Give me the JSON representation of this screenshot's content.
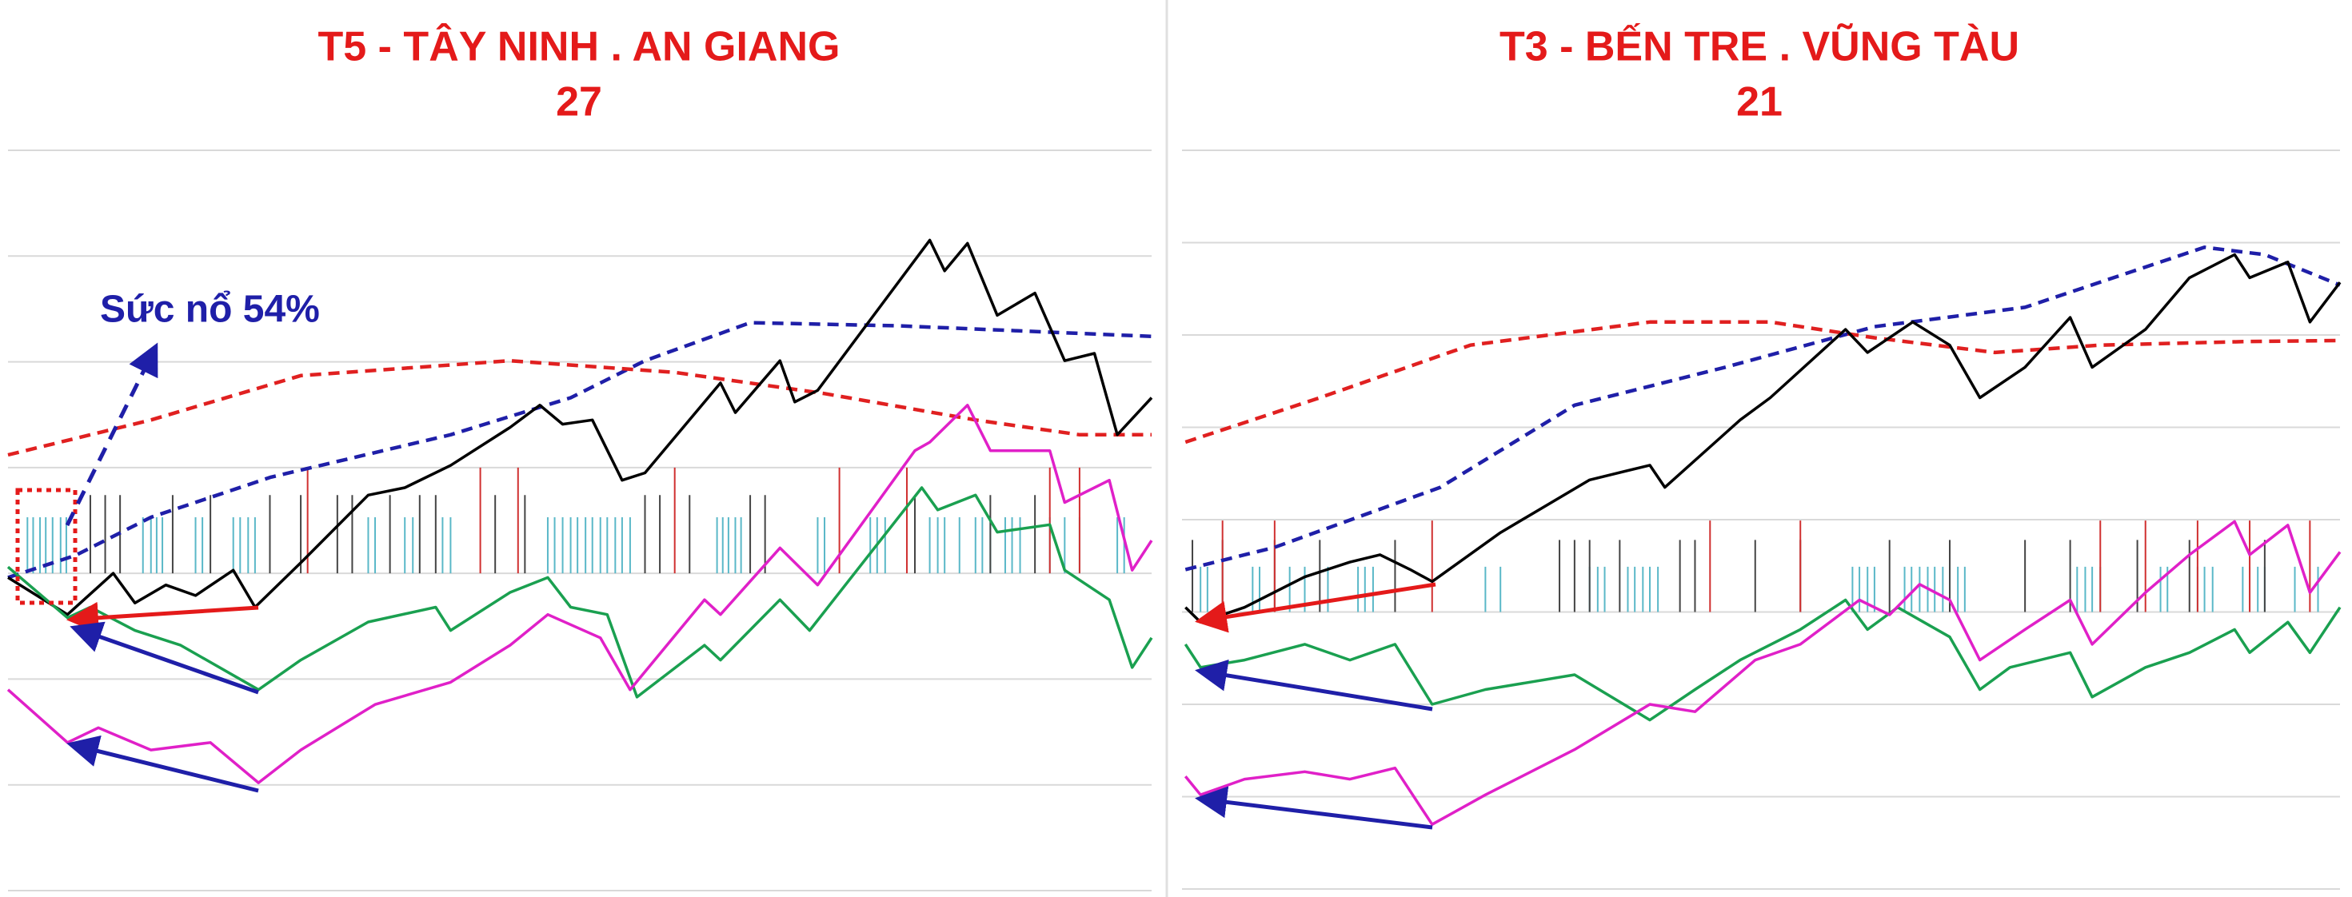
{
  "chart_data": [
    {
      "type": "line",
      "title": "T5 - TÂY NINH . AN GIANG",
      "subtitle": "27",
      "annotation": "Sức nổ 54%",
      "xlim": [
        0,
        100
      ],
      "ylim": [
        0,
        7
      ],
      "yticks": [
        0,
        1,
        2,
        3,
        4,
        5,
        6,
        7
      ],
      "grid": true,
      "series": [
        {
          "color": "#1f1fa8",
          "dashed": true,
          "x": [
            0,
            5.9,
            12.5,
            23.0,
            38.7,
            49.2,
            55.7,
            64.9,
            78.0,
            100
          ],
          "values": [
            2.96,
            3.17,
            3.53,
            3.91,
            4.31,
            4.66,
            5.01,
            5.37,
            5.34,
            5.24
          ]
        },
        {
          "color": "#e02020",
          "dashed": true,
          "x": [
            0,
            12.5,
            25.6,
            43.9,
            58.3,
            71.4,
            84.6,
            93.7,
            100
          ],
          "values": [
            4.12,
            4.45,
            4.87,
            5.01,
            4.9,
            4.7,
            4.45,
            4.31,
            4.31
          ]
        },
        {
          "color": "#000000",
          "dashed": false,
          "x": [
            0,
            5.2,
            9.2,
            11.1,
            13.8,
            16.4,
            19.7,
            21.6,
            25.6,
            31.5,
            34.7,
            38.7,
            43.9,
            46.5,
            48.5,
            51.1,
            53.7,
            55.7,
            62.3,
            63.6,
            67.5,
            68.8,
            70.8,
            80.6,
            81.9,
            83.9,
            86.5,
            89.8,
            92.4,
            95.0,
            97.0,
            100
          ],
          "values": [
            2.96,
            2.61,
            3.0,
            2.72,
            2.89,
            2.79,
            3.03,
            2.68,
            3.1,
            3.74,
            3.81,
            4.02,
            4.38,
            4.59,
            4.41,
            4.45,
            3.88,
            3.95,
            4.8,
            4.52,
            5.01,
            4.62,
            4.73,
            6.15,
            5.86,
            6.12,
            5.44,
            5.65,
            5.01,
            5.08,
            4.31,
            4.66
          ]
        },
        {
          "color": "#1aa050",
          "dashed": false,
          "x": [
            0,
            5.2,
            7.2,
            11.1,
            15.1,
            21.9,
            25.6,
            31.5,
            37.4,
            38.7,
            43.9,
            47.2,
            49.2,
            52.4,
            55.0,
            60.9,
            62.3,
            67.5,
            70.1,
            79.9,
            81.3,
            84.6,
            86.5,
            91.1,
            92.4,
            96.3,
            98.3,
            100
          ],
          "values": [
            3.06,
            2.58,
            2.68,
            2.46,
            2.32,
            1.9,
            2.18,
            2.54,
            2.68,
            2.46,
            2.82,
            2.96,
            2.68,
            2.61,
            1.83,
            2.32,
            2.18,
            2.75,
            2.46,
            3.81,
            3.6,
            3.74,
            3.39,
            3.46,
            3.03,
            2.75,
            2.11,
            2.39
          ]
        },
        {
          "color": "#e020c8",
          "dashed": false,
          "x": [
            0,
            5.2,
            7.9,
            12.5,
            17.7,
            21.9,
            25.6,
            32.1,
            38.7,
            43.9,
            47.2,
            51.8,
            54.4,
            60.9,
            62.3,
            67.5,
            70.8,
            79.3,
            80.6,
            83.9,
            85.9,
            91.1,
            92.4,
            96.3,
            98.3,
            100
          ],
          "values": [
            1.9,
            1.4,
            1.54,
            1.33,
            1.4,
            1.02,
            1.33,
            1.76,
            1.97,
            2.32,
            2.61,
            2.39,
            1.9,
            2.75,
            2.61,
            3.24,
            2.89,
            4.16,
            4.24,
            4.59,
            4.16,
            4.16,
            3.67,
            3.88,
            3.03,
            3.31
          ]
        }
      ],
      "spike_base": 3.0,
      "spikes": [
        {
          "color": "#5ab8c8",
          "top": 3.53,
          "x": [
            1.7,
            2.2,
            2.8,
            3.3,
            3.9,
            4.6,
            5.1,
            11.8,
            12.5,
            13.0,
            13.5,
            16.4,
            17.0,
            19.7,
            20.3,
            21.0,
            21.6,
            31.5,
            32.1,
            34.7,
            35.4,
            38.0,
            38.7,
            47.2,
            47.8,
            48.5,
            49.2,
            49.8,
            50.5,
            51.1,
            51.8,
            52.4,
            53.1,
            53.7,
            54.4,
            62.0,
            62.5,
            63.0,
            63.6,
            64.1,
            70.8,
            71.4,
            75.4,
            76.0,
            76.7,
            80.6,
            81.3,
            81.9,
            83.2,
            84.6,
            85.2,
            85.9,
            87.2,
            87.8,
            88.5,
            91.1,
            92.4,
            93.7,
            97.0,
            97.6
          ]
        },
        {
          "color": "#444444",
          "top": 3.74,
          "x": [
            7.2,
            8.5,
            9.8,
            14.4,
            17.7,
            22.9,
            25.6,
            28.8,
            30.1,
            33.4,
            36.0,
            37.4,
            42.6,
            45.2,
            55.7,
            57.0,
            59.6,
            64.9,
            66.2,
            79.3,
            85.9,
            89.8
          ]
        },
        {
          "color": "#d03030",
          "top": 4.0,
          "x": [
            26.2,
            41.3,
            44.6,
            58.3,
            72.7,
            78.6,
            91.1,
            93.7
          ]
        }
      ]
    },
    {
      "type": "line",
      "title": "T3 - BẾN TRE . VŨNG TÀU",
      "subtitle": "21",
      "xlim": [
        0,
        100
      ],
      "ylim": [
        0,
        8
      ],
      "yticks": [
        0,
        1,
        2,
        3,
        4,
        5,
        6,
        7,
        8
      ],
      "grid": true,
      "series": [
        {
          "color": "#1f1fa8",
          "dashed": true,
          "x": [
            0.3,
            8.0,
            22.3,
            33.9,
            46.9,
            59.8,
            72.8,
            88.3,
            93.5,
            100
          ],
          "values": [
            3.46,
            3.7,
            4.35,
            5.24,
            5.65,
            6.09,
            6.3,
            6.95,
            6.87,
            6.54
          ]
        },
        {
          "color": "#e02020",
          "dashed": true,
          "x": [
            0.3,
            11.9,
            24.9,
            40.4,
            50.8,
            59.8,
            70.2,
            79.3,
            92.2,
            100
          ],
          "values": [
            4.84,
            5.32,
            5.89,
            6.14,
            6.14,
            5.97,
            5.81,
            5.89,
            5.93,
            5.94
          ]
        },
        {
          "color": "#000000",
          "dashed": false,
          "x": [
            0.3,
            1.6,
            5.4,
            10.6,
            14.5,
            17.1,
            19.7,
            21.6,
            27.5,
            35.2,
            40.4,
            41.7,
            48.2,
            50.8,
            57.3,
            59.2,
            63.1,
            66.3,
            68.9,
            72.8,
            76.7,
            78.6,
            83.2,
            87.0,
            90.9,
            92.2,
            95.5,
            97.4,
            100
          ],
          "values": [
            3.05,
            2.89,
            3.05,
            3.38,
            3.54,
            3.62,
            3.46,
            3.33,
            3.86,
            4.43,
            4.59,
            4.35,
            5.08,
            5.32,
            6.06,
            5.81,
            6.14,
            5.89,
            5.32,
            5.65,
            6.19,
            5.65,
            6.06,
            6.62,
            6.87,
            6.62,
            6.79,
            6.14,
            6.57
          ]
        },
        {
          "color": "#1aa050",
          "dashed": false,
          "x": [
            0.3,
            1.6,
            5.4,
            10.6,
            14.5,
            18.4,
            21.6,
            26.2,
            33.9,
            40.4,
            44.3,
            48.2,
            53.4,
            57.3,
            59.2,
            61.8,
            66.3,
            68.9,
            71.5,
            76.7,
            78.6,
            83.2,
            87.0,
            90.9,
            92.2,
            95.5,
            97.4,
            100
          ],
          "values": [
            2.65,
            2.4,
            2.48,
            2.65,
            2.48,
            2.65,
            2.0,
            2.16,
            2.32,
            1.83,
            2.16,
            2.48,
            2.81,
            3.13,
            2.81,
            3.05,
            2.73,
            2.16,
            2.4,
            2.56,
            2.08,
            2.4,
            2.56,
            2.81,
            2.56,
            2.89,
            2.56,
            3.05
          ]
        },
        {
          "color": "#e020c8",
          "dashed": false,
          "x": [
            0.3,
            1.6,
            5.4,
            10.6,
            14.5,
            18.4,
            21.6,
            26.2,
            33.9,
            40.4,
            44.3,
            49.5,
            53.4,
            58.5,
            61.1,
            63.7,
            66.3,
            68.9,
            72.8,
            76.7,
            78.6,
            83.2,
            87.0,
            90.9,
            92.2,
            95.5,
            97.4,
            100
          ],
          "values": [
            1.22,
            1.02,
            1.19,
            1.27,
            1.19,
            1.31,
            0.7,
            1.02,
            1.51,
            2.0,
            1.92,
            2.48,
            2.65,
            3.13,
            2.97,
            3.3,
            3.13,
            2.48,
            2.81,
            3.13,
            2.65,
            3.21,
            3.62,
            3.98,
            3.62,
            3.94,
            3.21,
            3.65
          ]
        }
      ],
      "spike_base": 3.0,
      "spikes": [
        {
          "color": "#5ab8c8",
          "top": 3.49,
          "x": [
            1.6,
            2.2,
            6.1,
            6.7,
            9.3,
            10.6,
            12.6,
            15.2,
            15.8,
            16.5,
            26.2,
            27.5,
            35.2,
            35.9,
            36.5,
            38.5,
            39.1,
            39.8,
            40.4,
            41.1,
            57.9,
            58.5,
            59.2,
            59.8,
            62.4,
            63.0,
            63.7,
            64.4,
            65.0,
            65.7,
            66.3,
            67.0,
            67.6,
            77.3,
            78.0,
            78.6,
            79.3,
            84.5,
            85.1,
            87.7,
            88.3,
            89.0,
            91.6,
            92.2,
            92.9,
            93.5,
            96.1,
            98.1
          ]
        },
        {
          "color": "#444444",
          "top": 3.78,
          "x": [
            0.9,
            3.5,
            8.0,
            11.9,
            18.4,
            32.6,
            33.9,
            35.2,
            37.8,
            43.0,
            44.3,
            49.5,
            53.4,
            61.1,
            66.3,
            72.8,
            76.7,
            82.5,
            87.0,
            93.5
          ]
        },
        {
          "color": "#d03030",
          "top": 3.99,
          "x": [
            3.5,
            8.0,
            21.6,
            45.6,
            53.4,
            79.3,
            83.2,
            87.7,
            92.2,
            97.4
          ]
        }
      ]
    }
  ]
}
